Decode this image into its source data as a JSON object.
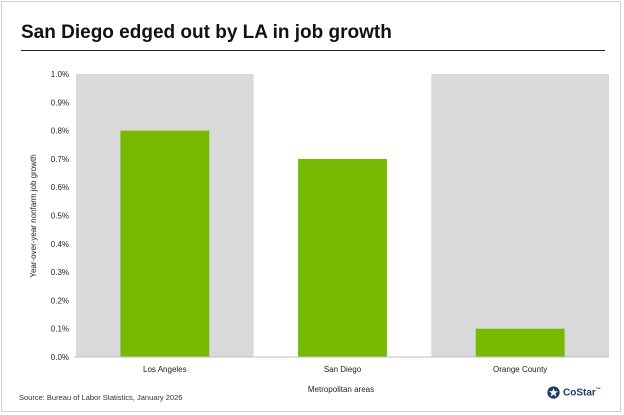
{
  "chart_data": {
    "type": "bar",
    "title": "San Diego edged out by LA in job growth",
    "xlabel": "Metropolitan areas",
    "ylabel": "Year-over-year nonfarm job growth",
    "categories": [
      "Los Angeles",
      "San Diego",
      "Orange County"
    ],
    "values": [
      0.8,
      0.7,
      0.1
    ],
    "ylim": [
      0,
      1.0
    ],
    "yticks": [
      "0.0%",
      "0.1%",
      "0.2%",
      "0.3%",
      "0.4%",
      "0.5%",
      "0.6%",
      "0.7%",
      "0.8%",
      "0.9%",
      "1.0%"
    ],
    "bar_color": "#76b900",
    "band_color": "#d9d9d9",
    "grid": false,
    "legend": "none"
  },
  "source": "Source: Bureau of Labor Statistics, January 2026",
  "logo": {
    "text": "CoStar",
    "tm": "™",
    "icon": "costar-star-icon"
  }
}
